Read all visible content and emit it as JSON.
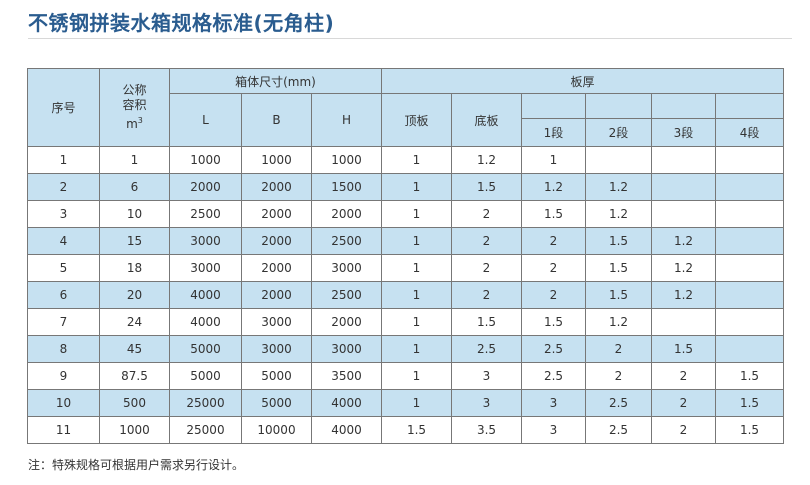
{
  "title": "不锈钢拼装水箱规格标准(无角柱)",
  "headers": {
    "seq": "序号",
    "volume_line1": "公称",
    "volume_line2": "容积",
    "volume_unit": "m",
    "volume_unit_sup": "3",
    "dims_group": "箱体尺寸(mm)",
    "L": "L",
    "B": "B",
    "H": "H",
    "thickness_group": "板厚",
    "top_plate": "顶板",
    "bottom_plate": "底板",
    "seg1": "1段",
    "seg2": "2段",
    "seg3": "3段",
    "seg4": "4段"
  },
  "rows": [
    {
      "no": "1",
      "vol": "1",
      "L": "1000",
      "B": "1000",
      "H": "1000",
      "top": "1",
      "bottom": "1.2",
      "s1": "1",
      "s2": "",
      "s3": "",
      "s4": ""
    },
    {
      "no": "2",
      "vol": "6",
      "L": "2000",
      "B": "2000",
      "H": "1500",
      "top": "1",
      "bottom": "1.5",
      "s1": "1.2",
      "s2": "1.2",
      "s3": "",
      "s4": ""
    },
    {
      "no": "3",
      "vol": "10",
      "L": "2500",
      "B": "2000",
      "H": "2000",
      "top": "1",
      "bottom": "2",
      "s1": "1.5",
      "s2": "1.2",
      "s3": "",
      "s4": ""
    },
    {
      "no": "4",
      "vol": "15",
      "L": "3000",
      "B": "2000",
      "H": "2500",
      "top": "1",
      "bottom": "2",
      "s1": "2",
      "s2": "1.5",
      "s3": "1.2",
      "s4": ""
    },
    {
      "no": "5",
      "vol": "18",
      "L": "3000",
      "B": "2000",
      "H": "3000",
      "top": "1",
      "bottom": "2",
      "s1": "2",
      "s2": "1.5",
      "s3": "1.2",
      "s4": ""
    },
    {
      "no": "6",
      "vol": "20",
      "L": "4000",
      "B": "2000",
      "H": "2500",
      "top": "1",
      "bottom": "2",
      "s1": "2",
      "s2": "1.5",
      "s3": "1.2",
      "s4": ""
    },
    {
      "no": "7",
      "vol": "24",
      "L": "4000",
      "B": "3000",
      "H": "2000",
      "top": "1",
      "bottom": "1.5",
      "s1": "1.5",
      "s2": "1.2",
      "s3": "",
      "s4": ""
    },
    {
      "no": "8",
      "vol": "45",
      "L": "5000",
      "B": "3000",
      "H": "3000",
      "top": "1",
      "bottom": "2.5",
      "s1": "2.5",
      "s2": "2",
      "s3": "1.5",
      "s4": ""
    },
    {
      "no": "9",
      "vol": "87.5",
      "L": "5000",
      "B": "5000",
      "H": "3500",
      "top": "1",
      "bottom": "3",
      "s1": "2.5",
      "s2": "2",
      "s3": "2",
      "s4": "1.5"
    },
    {
      "no": "10",
      "vol": "500",
      "L": "25000",
      "B": "5000",
      "H": "4000",
      "top": "1",
      "bottom": "3",
      "s1": "3",
      "s2": "2.5",
      "s3": "2",
      "s4": "1.5"
    },
    {
      "no": "11",
      "vol": "1000",
      "L": "25000",
      "B": "10000",
      "H": "4000",
      "top": "1.5",
      "bottom": "3.5",
      "s1": "3",
      "s2": "2.5",
      "s3": "2",
      "s4": "1.5"
    }
  ],
  "note": "注：特殊规格可根据用户需求另行设计。",
  "colors": {
    "title": "#2a5c8f",
    "header_bg": "#c6e1f1",
    "alt_row_bg": "#c6e1f1",
    "border": "#777777"
  }
}
